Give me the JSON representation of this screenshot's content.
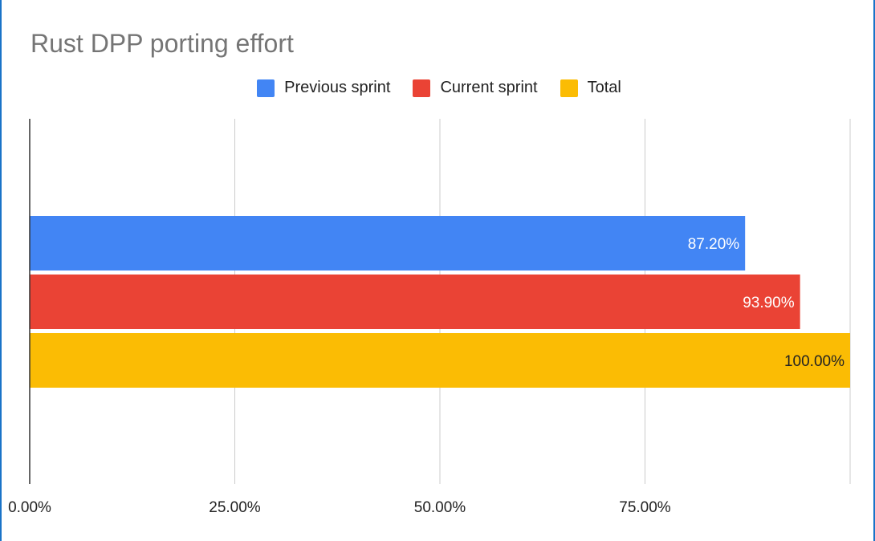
{
  "chart_data": {
    "type": "bar",
    "orientation": "horizontal",
    "title": "Rust DPP porting effort",
    "xlabel": "",
    "ylabel": "",
    "xlim": [
      0,
      100
    ],
    "x_ticks": [
      "0.00%",
      "25.00%",
      "50.00%",
      "75.00%"
    ],
    "x_tick_values": [
      0,
      25,
      50,
      75
    ],
    "grid": true,
    "legend_position": "top",
    "series": [
      {
        "name": "Previous sprint",
        "values": [
          87.2
        ],
        "label": "87.20%",
        "color": "#4285f4",
        "label_color": "#ffffff"
      },
      {
        "name": "Current sprint",
        "values": [
          93.9
        ],
        "label": "93.90%",
        "color": "#ea4335",
        "label_color": "#ffffff"
      },
      {
        "name": "Total",
        "values": [
          100.0
        ],
        "label": "100.00%",
        "color": "#fbbc04",
        "label_color": "#222222"
      }
    ]
  }
}
